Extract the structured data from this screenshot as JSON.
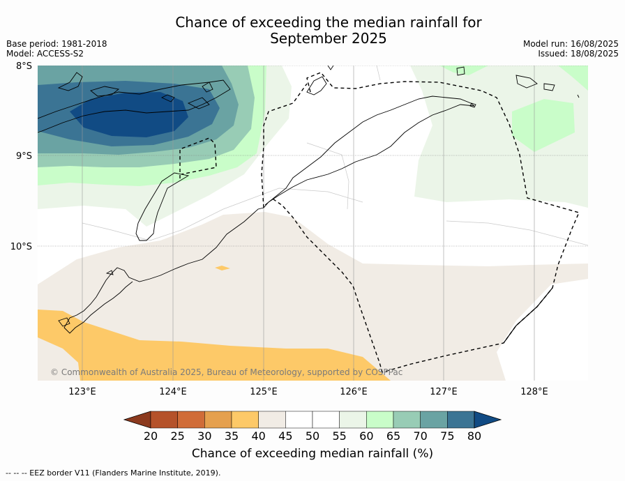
{
  "title": {
    "line1": "Chance of exceeding the median rainfall for",
    "line2": "September 2025"
  },
  "meta": {
    "base_period": "Base period: 1981-2018",
    "model": "Model: ACCESS-S2",
    "model_run": "Model run: 16/08/2025",
    "issued": "Issued: 18/08/2025"
  },
  "map": {
    "lat_labels": [
      "8°S",
      "9°S",
      "10°S"
    ],
    "lon_labels": [
      "123°E",
      "124°E",
      "125°E",
      "126°E",
      "127°E",
      "128°E"
    ],
    "copyright": "© Commonwealth of Australia 2025, Bureau of Meteorology, supported by COSPPac",
    "colors": {
      "ocean_white": "#ffffff",
      "land_outline": "#000000",
      "eez_line": "#000000"
    }
  },
  "colorbar": {
    "title": "Chance of exceeding median rainfall (%)",
    "tick_labels": [
      "20",
      "25",
      "30",
      "35",
      "40",
      "45",
      "50",
      "55",
      "60",
      "65",
      "70",
      "75",
      "80"
    ],
    "bins": [
      {
        "range": "<20",
        "color": "#8c3a1e"
      },
      {
        "range": "20-25",
        "color": "#b5522a"
      },
      {
        "range": "25-30",
        "color": "#d06c38"
      },
      {
        "range": "30-35",
        "color": "#e5a04e"
      },
      {
        "range": "35-40",
        "color": "#fdc968"
      },
      {
        "range": "40-45",
        "color": "#f1ece5"
      },
      {
        "range": "45-50",
        "color": "#ffffff"
      },
      {
        "range": "50-55",
        "color": "#ffffff"
      },
      {
        "range": "55-60",
        "color": "#ebf5e8"
      },
      {
        "range": "60-65",
        "color": "#c9fdc9"
      },
      {
        "range": "65-70",
        "color": "#98ccb5"
      },
      {
        "range": "70-75",
        "color": "#6aa3a3"
      },
      {
        "range": "75-80",
        "color": "#3b7494"
      },
      {
        "range": ">80",
        "color": "#114b84"
      }
    ]
  },
  "footer": {
    "eez_note": "--  --  -- EEZ border V11 (Flanders Marine Institute, 2019)."
  }
}
